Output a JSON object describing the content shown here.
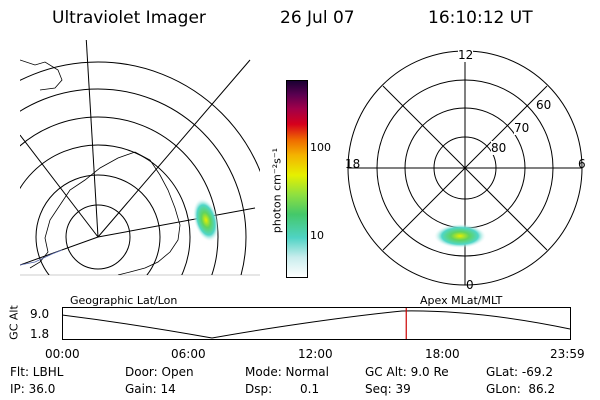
{
  "header": {
    "instrument": "Ultraviolet Imager",
    "date": "26 Jul 07",
    "time": "16:10:12 UT"
  },
  "colorbar": {
    "unit_label": "photon cm⁻²s⁻¹",
    "tick_100": "100",
    "tick_10": "10"
  },
  "left_map": {
    "caption": "Geographic Lat/Lon"
  },
  "right_map": {
    "caption": "Apex MLat/MLT",
    "mlt_12": "12",
    "mlt_18": "18",
    "mlt_6": "6",
    "mlt_0": "0",
    "lat_60": "60",
    "lat_70": "70",
    "lat_80": "80"
  },
  "timeline": {
    "ylabel": "GC Alt",
    "tick_top": "9.0",
    "tick_bottom": "1.8",
    "x_ticks": [
      "00:00",
      "06:00",
      "12:00",
      "18:00",
      "23:59"
    ],
    "current_time_fraction": 0.677,
    "marker_color": "#cc0000"
  },
  "status": {
    "flt": "Flt: LBHL",
    "ip": "IP: 36.0",
    "door": "Door: Open",
    "gain": "Gain: 14",
    "mode": "Mode: Normal",
    "dsp": "Dsp:",
    "dsp_value": "0.1",
    "gc_alt": "GC Alt: 9.0 Re",
    "seq": "Seq: 39",
    "glat": "GLat: -69.2",
    "glon": "GLon:  86.2"
  }
}
